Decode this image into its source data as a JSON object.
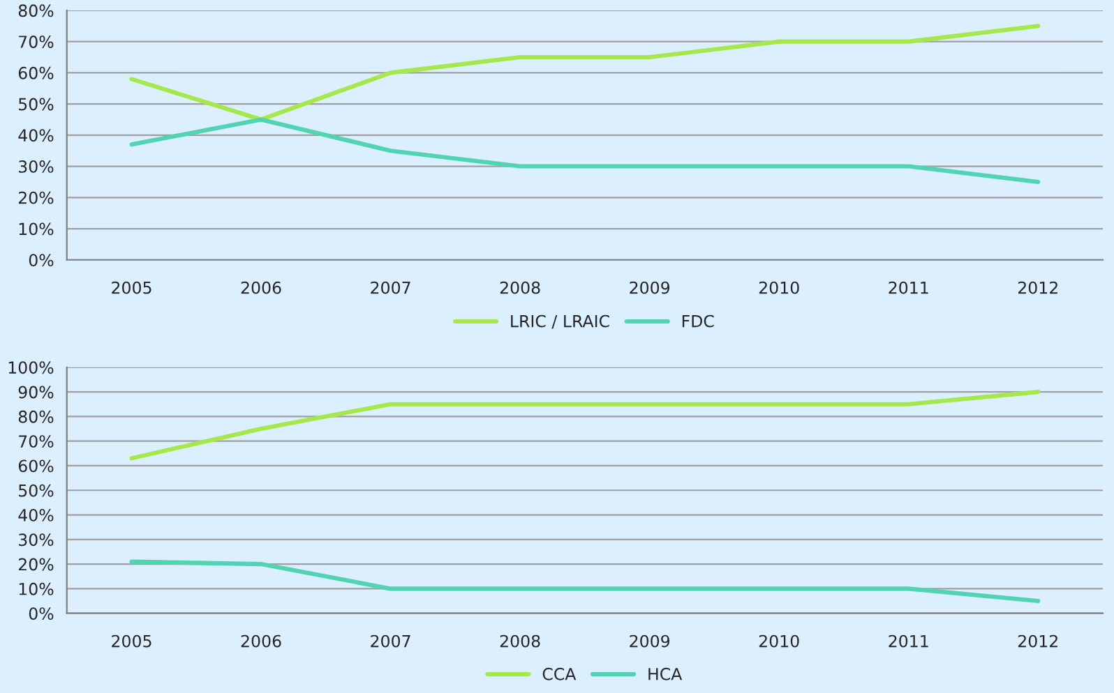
{
  "chart_data": [
    {
      "type": "line",
      "categories": [
        "2005",
        "2006",
        "2007",
        "2008",
        "2009",
        "2010",
        "2011",
        "2012"
      ],
      "series": [
        {
          "name": "LRIC / LRAIC",
          "color": "#a6e84c",
          "values": [
            58,
            45,
            60,
            65,
            65,
            70,
            70,
            75
          ]
        },
        {
          "name": "FDC",
          "color": "#52d4b2",
          "values": [
            37,
            45,
            35,
            30,
            30,
            30,
            30,
            25
          ]
        }
      ],
      "ylim": [
        0,
        80
      ],
      "yticks": [
        {
          "value": 0,
          "label": "0%"
        },
        {
          "value": 10,
          "label": "10%"
        },
        {
          "value": 20,
          "label": "20%"
        },
        {
          "value": 30,
          "label": "30%"
        },
        {
          "value": 40,
          "label": "40%"
        },
        {
          "value": 50,
          "label": "50%"
        },
        {
          "value": 60,
          "label": "60%"
        },
        {
          "value": 70,
          "label": "70%"
        },
        {
          "value": 80,
          "label": "80%"
        }
      ],
      "grid": "y",
      "legend": "bottom",
      "marker": "none",
      "line_style": "solid"
    },
    {
      "type": "line",
      "categories": [
        "2005",
        "2006",
        "2007",
        "2008",
        "2009",
        "2010",
        "2011",
        "2012"
      ],
      "series": [
        {
          "name": "CCA",
          "color": "#a6e84c",
          "values": [
            63,
            75,
            85,
            85,
            85,
            85,
            85,
            90
          ]
        },
        {
          "name": "HCA",
          "color": "#52d4b2",
          "values": [
            21,
            20,
            10,
            10,
            10,
            10,
            10,
            5
          ]
        }
      ],
      "ylim": [
        0,
        100
      ],
      "yticks": [
        {
          "value": 0,
          "label": "0%"
        },
        {
          "value": 10,
          "label": "10%"
        },
        {
          "value": 20,
          "label": "20%"
        },
        {
          "value": 30,
          "label": "30%"
        },
        {
          "value": 40,
          "label": "40%"
        },
        {
          "value": 50,
          "label": "50%"
        },
        {
          "value": 60,
          "label": "60%"
        },
        {
          "value": 70,
          "label": "70%"
        },
        {
          "value": 80,
          "label": "80%"
        },
        {
          "value": 90,
          "label": "90%"
        },
        {
          "value": 100,
          "label": "100%"
        }
      ],
      "grid": "y",
      "legend": "bottom",
      "marker": "none",
      "line_style": "solid"
    }
  ]
}
